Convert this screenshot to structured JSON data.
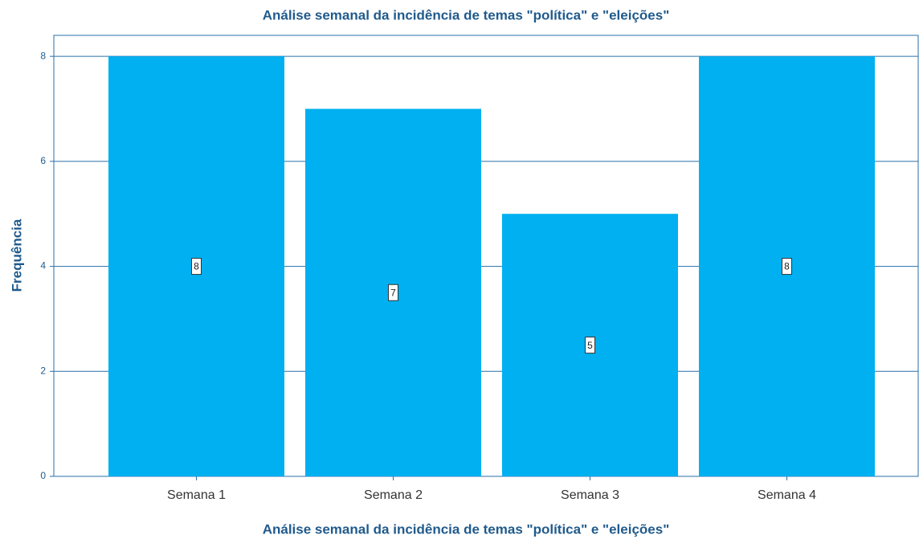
{
  "chart_data": {
    "type": "bar",
    "title": "Análise semanal da incidência de temas \"política\" e \"eleições\"",
    "x_label": "Análise semanal da incidência de temas \"política\" e \"eleições\"",
    "y_label": "Frequência",
    "categories": [
      "Semana 1",
      "Semana 2",
      "Semana 3",
      "Semana 4"
    ],
    "values": [
      8,
      7,
      5,
      8
    ],
    "color": "#00b0f0",
    "ylim": [
      0,
      8.4
    ],
    "yticks": [
      0,
      2,
      4,
      6,
      8
    ],
    "grid": true
  }
}
